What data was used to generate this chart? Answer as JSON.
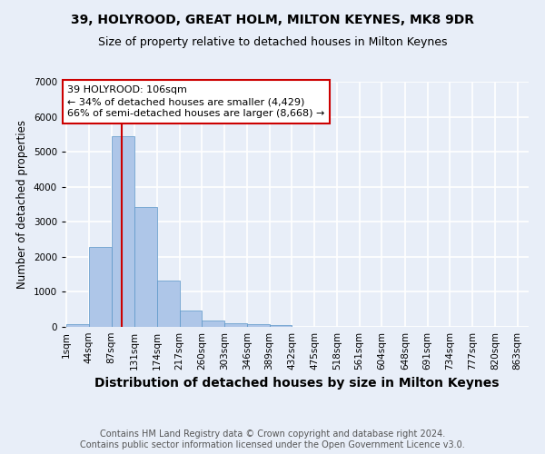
{
  "title": "39, HOLYROOD, GREAT HOLM, MILTON KEYNES, MK8 9DR",
  "subtitle": "Size of property relative to detached houses in Milton Keynes",
  "xlabel": "Distribution of detached houses by size in Milton Keynes",
  "ylabel": "Number of detached properties",
  "footer_line1": "Contains HM Land Registry data © Crown copyright and database right 2024.",
  "footer_line2": "Contains public sector information licensed under the Open Government Licence v3.0.",
  "bin_labels": [
    "1sqm",
    "44sqm",
    "87sqm",
    "131sqm",
    "174sqm",
    "217sqm",
    "260sqm",
    "303sqm",
    "346sqm",
    "389sqm",
    "432sqm",
    "475sqm",
    "518sqm",
    "561sqm",
    "604sqm",
    "648sqm",
    "691sqm",
    "734sqm",
    "777sqm",
    "820sqm",
    "863sqm"
  ],
  "bar_values": [
    75,
    2270,
    5450,
    3420,
    1310,
    455,
    190,
    100,
    75,
    50,
    0,
    0,
    0,
    0,
    0,
    0,
    0,
    0,
    0,
    0
  ],
  "bar_color": "#aec6e8",
  "bar_edgecolor": "#5a96c8",
  "bin_edges_sqm": [
    1,
    44,
    87,
    131,
    174,
    217,
    260,
    303,
    346,
    389,
    432,
    475,
    518,
    561,
    604,
    648,
    691,
    734,
    777,
    820,
    863
  ],
  "property_size": 106,
  "vline_color": "#cc0000",
  "annotation_line1": "39 HOLYROOD: 106sqm",
  "annotation_line2": "← 34% of detached houses are smaller (4,429)",
  "annotation_line3": "66% of semi-detached houses are larger (8,668) →",
  "annotation_box_color": "#cc0000",
  "ylim": [
    0,
    7000
  ],
  "yticks": [
    0,
    1000,
    2000,
    3000,
    4000,
    5000,
    6000,
    7000
  ],
  "background_color": "#e8eef8",
  "plot_bg_color": "#e8eef8",
  "grid_color": "#ffffff",
  "title_fontsize": 10,
  "subtitle_fontsize": 9,
  "xlabel_fontsize": 10,
  "ylabel_fontsize": 8.5,
  "tick_fontsize": 7.5,
  "annotation_fontsize": 8,
  "footer_fontsize": 7
}
